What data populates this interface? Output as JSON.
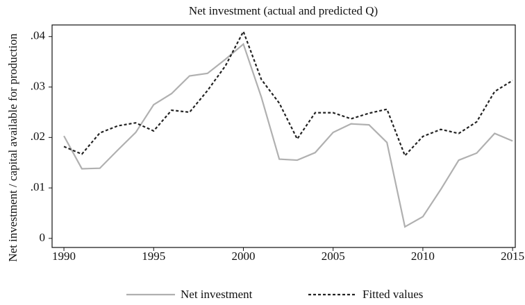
{
  "chart_data": {
    "type": "line",
    "title": "Net investment (actual and predicted Q)",
    "ylabel": "Net investment / capital available for production",
    "x": [
      1990,
      1991,
      1992,
      1993,
      1994,
      1995,
      1996,
      1997,
      1998,
      1999,
      2000,
      2001,
      2002,
      2003,
      2004,
      2005,
      2006,
      2007,
      2008,
      2009,
      2010,
      2011,
      2012,
      2013,
      2014,
      2015
    ],
    "series": [
      {
        "name": "Net investment",
        "color": "#b0b0b0",
        "dash": "none",
        "values": [
          0.0203,
          0.0138,
          0.0139,
          0.0175,
          0.021,
          0.0265,
          0.0287,
          0.0322,
          0.0327,
          0.0355,
          0.0385,
          0.028,
          0.0157,
          0.0155,
          0.017,
          0.021,
          0.0227,
          0.0225,
          0.019,
          0.0023,
          0.0043,
          0.0097,
          0.0155,
          0.0169,
          0.0208,
          0.0193
        ]
      },
      {
        "name": "Fitted values",
        "color": "#222222",
        "dash": "4,3",
        "values": [
          0.0182,
          0.0167,
          0.0209,
          0.0223,
          0.0229,
          0.0213,
          0.0254,
          0.025,
          0.0293,
          0.0342,
          0.041,
          0.0315,
          0.0268,
          0.0197,
          0.0249,
          0.0249,
          0.0237,
          0.0248,
          0.0256,
          0.0164,
          0.0202,
          0.0216,
          0.0208,
          0.0231,
          0.0291,
          0.0313
        ]
      }
    ],
    "xlim": [
      1989.34,
      2015.15
    ],
    "xticks": [
      1990,
      1995,
      2000,
      2005,
      2010,
      2015
    ],
    "ylim": [
      -0.0018,
      0.0423
    ],
    "yticks": [
      0,
      {
        "value": 0.01,
        "label": ".01"
      },
      {
        "value": 0.02,
        "label": ".02"
      },
      {
        "value": 0.03,
        "label": ".03"
      },
      {
        "value": 0.04,
        "label": ".04"
      }
    ],
    "grid": false,
    "legend": "bottom"
  }
}
